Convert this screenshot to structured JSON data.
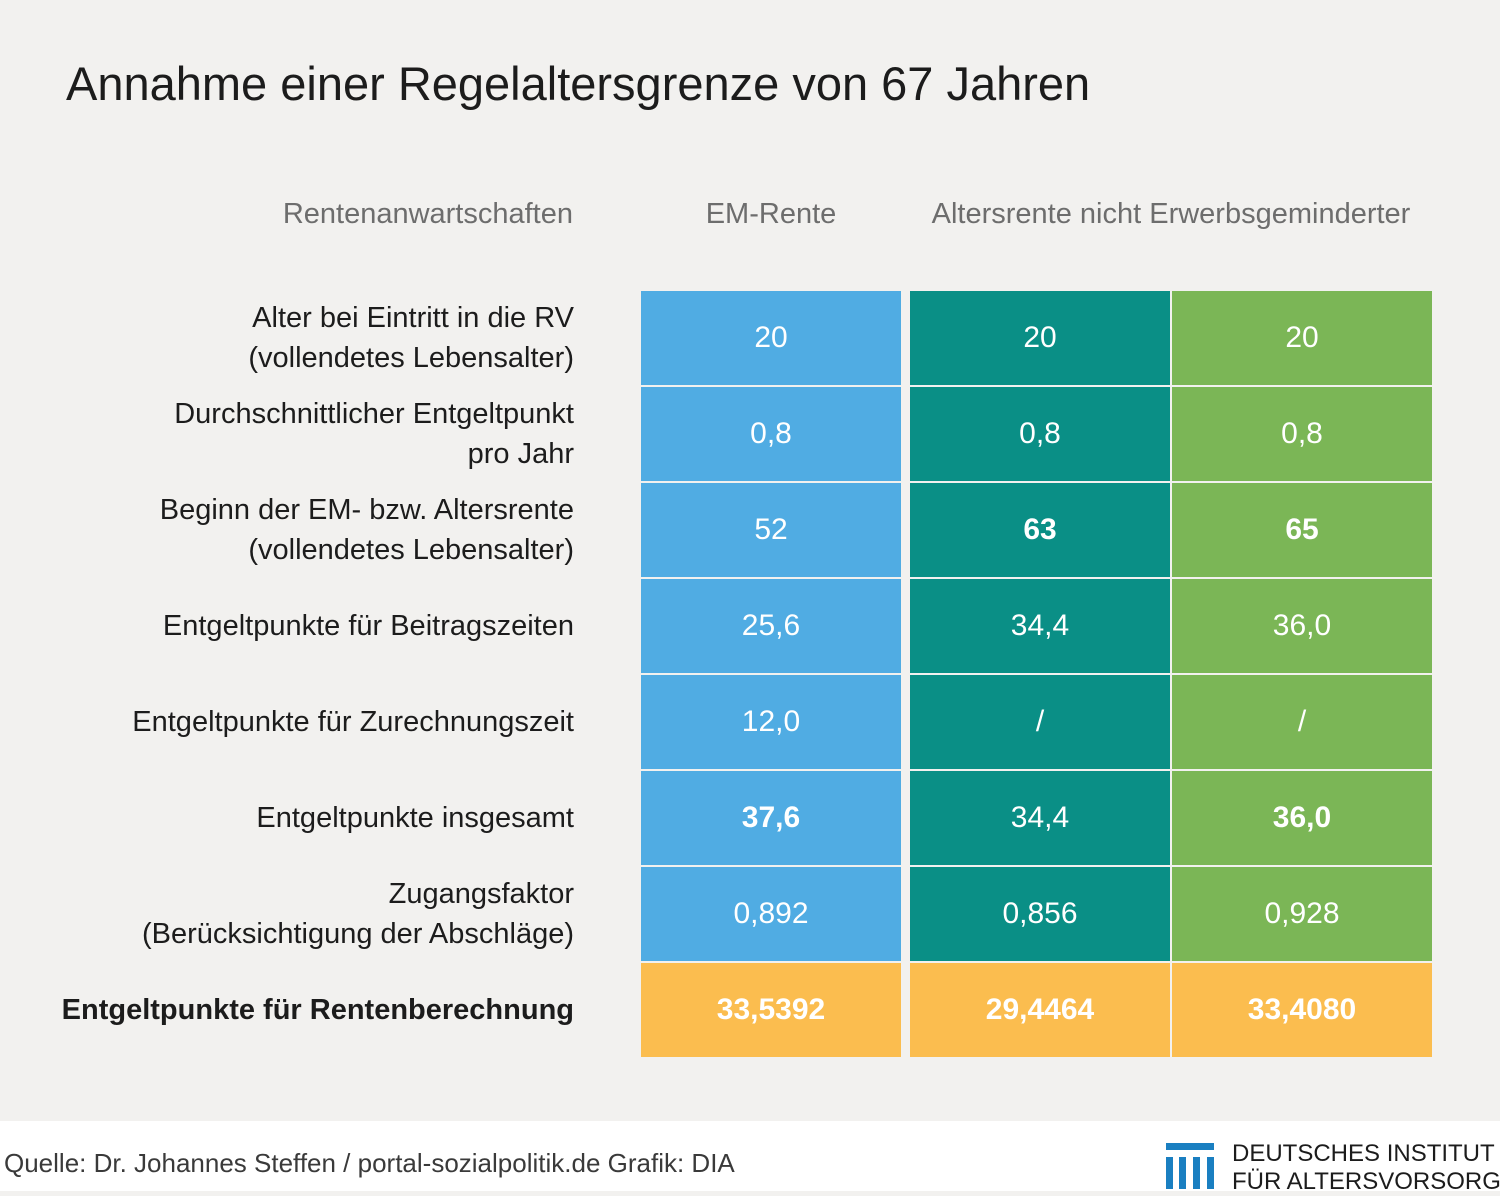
{
  "title": "Annahme einer Regelaltersgrenze von 67 Jahren",
  "headers": {
    "row_header": "Rentenanwartschaften",
    "col1": "EM-Rente",
    "col23": "Altersrente nicht Erwerbsgeminderter"
  },
  "rows": [
    {
      "label1": "Alter bei Eintritt in die RV",
      "label2": "(vollendetes Lebensalter)",
      "values": [
        "20",
        "20",
        "20"
      ],
      "bold": [
        false,
        false,
        false
      ]
    },
    {
      "label1": "Durchschnittlicher Entgeltpunkt",
      "label2": "pro Jahr",
      "values": [
        "0,8",
        "0,8",
        "0,8"
      ],
      "bold": [
        false,
        false,
        false
      ]
    },
    {
      "label1": "Beginn der EM- bzw. Altersrente",
      "label2": "(vollendetes Lebensalter)",
      "values": [
        "52",
        "63",
        "65"
      ],
      "bold": [
        false,
        true,
        true
      ]
    },
    {
      "label1": "Entgeltpunkte für Beitragszeiten",
      "label2": "",
      "values": [
        "25,6",
        "34,4",
        "36,0"
      ],
      "bold": [
        false,
        false,
        false
      ]
    },
    {
      "label1": "Entgeltpunkte für Zurechnungszeit",
      "label2": "",
      "values": [
        "12,0",
        "/",
        "/"
      ],
      "bold": [
        false,
        false,
        false
      ]
    },
    {
      "label1": "Entgeltpunkte insgesamt",
      "label2": "",
      "values": [
        "37,6",
        "34,4",
        "36,0"
      ],
      "bold": [
        true,
        false,
        true
      ]
    },
    {
      "label1": "Zugangsfaktor",
      "label2": "(Berücksichtigung der Abschläge)",
      "values": [
        "0,892",
        "0,856",
        "0,928"
      ],
      "bold": [
        false,
        false,
        false
      ]
    },
    {
      "label1": "Entgeltpunkte für Rentenberechnung",
      "label2": "",
      "values": [
        "33,5392",
        "29,4464",
        "33,4080"
      ],
      "bold": [
        true,
        true,
        true
      ],
      "row_bold": true,
      "total": true
    }
  ],
  "colors": {
    "col1": "#50ace3",
    "col2": "#0a8f86",
    "col3": "#7bb656",
    "total": "#fbbd4f"
  },
  "chart_data": {
    "type": "table",
    "title": "Annahme einer Regelaltersgrenze von 67 Jahren",
    "columns": [
      "Rentenanwartschaften",
      "EM-Rente",
      "Altersrente nicht Erwerbsgeminderter",
      "Altersrente nicht Erwerbsgeminderter"
    ],
    "rows": [
      [
        "Alter bei Eintritt in die RV (vollendetes Lebensalter)",
        20,
        20,
        20
      ],
      [
        "Durchschnittlicher Entgeltpunkt pro Jahr",
        0.8,
        0.8,
        0.8
      ],
      [
        "Beginn der EM- bzw. Altersrente (vollendetes Lebensalter)",
        52,
        63,
        65
      ],
      [
        "Entgeltpunkte für Beitragszeiten",
        25.6,
        34.4,
        36.0
      ],
      [
        "Entgeltpunkte für Zurechnungszeit",
        12.0,
        null,
        null
      ],
      [
        "Entgeltpunkte insgesamt",
        37.6,
        34.4,
        36.0
      ],
      [
        "Zugangsfaktor (Berücksichtigung der Abschläge)",
        0.892,
        0.856,
        0.928
      ],
      [
        "Entgeltpunkte für Rentenberechnung",
        33.5392,
        29.4464,
        33.408
      ]
    ]
  },
  "footer": {
    "source": "Quelle: Dr. Johannes Steffen / portal-sozialpolitik.de  Grafik: DIA",
    "logo_line1": "DEUTSCHES INSTITUT",
    "logo_line2": "FÜR ALTERSVORSORGE",
    "logo_color": "#1a7fc1"
  }
}
